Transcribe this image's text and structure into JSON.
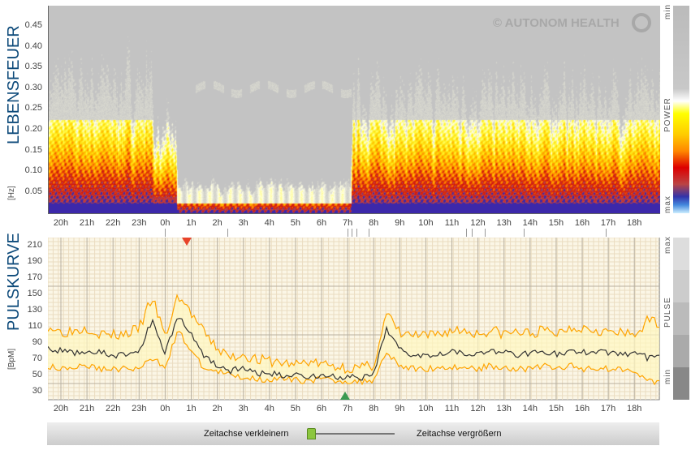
{
  "spectrogram": {
    "title": "LEBENSFEUER",
    "unit": "[Hz]",
    "y_ticks": [
      "0.45",
      "0.40",
      "0.35",
      "0.30",
      "0.25",
      "0.20",
      "0.15",
      "0.10",
      "0.05"
    ],
    "watermark": "© AUTONOM HEALTH",
    "legend": {
      "min": "min",
      "label": "POWER",
      "max": "max"
    }
  },
  "x_ticks": [
    "20h",
    "21h",
    "22h",
    "23h",
    "0h",
    "1h",
    "2h",
    "3h",
    "4h",
    "5h",
    "6h",
    "7h",
    "8h",
    "9h",
    "10h",
    "11h",
    "12h",
    "13h",
    "14h",
    "15h",
    "16h",
    "17h",
    "18h"
  ],
  "event_marks_hours": [
    0.0,
    2.4,
    7.0,
    7.15,
    7.35,
    7.8,
    11.55,
    11.75,
    12.25,
    13.75,
    16.9
  ],
  "pulse": {
    "title": "PULSKURVE",
    "unit": "[BpM]",
    "y_ticks": [
      "210",
      "190",
      "170",
      "150",
      "130",
      "110",
      "90",
      "70",
      "50",
      "30"
    ],
    "legend": {
      "max": "max",
      "label": "PULSE",
      "min": "min"
    },
    "sleep_start_hour": 0.85,
    "wake_hour": 6.85
  },
  "chart_data": {
    "type": "line",
    "title": "PULSKURVE",
    "ylabel": "BpM",
    "ylim": [
      20,
      220
    ],
    "x_hours_from_19_30_step": 0.5,
    "series": [
      {
        "name": "mean",
        "color": "#333333",
        "values": [
          82,
          80,
          78,
          80,
          78,
          74,
          76,
          80,
          118,
          78,
          125,
          100,
          75,
          62,
          56,
          58,
          53,
          52,
          50,
          51,
          49,
          50,
          48,
          48,
          46,
          50,
          108,
          82,
          76,
          75,
          78,
          80,
          78,
          76,
          80,
          78,
          76,
          78,
          80,
          76,
          79,
          78,
          80,
          78,
          76,
          78,
          72
        ]
      },
      {
        "name": "upper",
        "color": "#ffa500",
        "values": [
          110,
          102,
          104,
          108,
          100,
          98,
          100,
          106,
          145,
          95,
          148,
          125,
          100,
          82,
          70,
          75,
          68,
          66,
          64,
          62,
          66,
          62,
          60,
          58,
          57,
          62,
          125,
          100,
          98,
          96,
          100,
          104,
          104,
          100,
          104,
          100,
          102,
          100,
          104,
          100,
          108,
          108,
          106,
          102,
          100,
          98,
          115
        ]
      },
      {
        "name": "lower",
        "color": "#ffa500",
        "values": [
          60,
          60,
          60,
          62,
          58,
          58,
          58,
          58,
          70,
          62,
          105,
          80,
          58,
          55,
          50,
          48,
          46,
          45,
          45,
          44,
          44,
          45,
          44,
          43,
          42,
          45,
          80,
          62,
          58,
          58,
          60,
          60,
          60,
          58,
          62,
          60,
          58,
          58,
          62,
          58,
          62,
          58,
          60,
          58,
          58,
          58,
          42
        ]
      }
    ]
  },
  "zoom_bar": {
    "shrink_label": "Zeitachse verkleinern",
    "grow_label": "Zeitachse vergrößern"
  },
  "colors": {
    "title": "#0d4a7a",
    "marker_red": "#e8432a",
    "marker_green": "#3a9a50",
    "thumb": "#8cc63f"
  }
}
